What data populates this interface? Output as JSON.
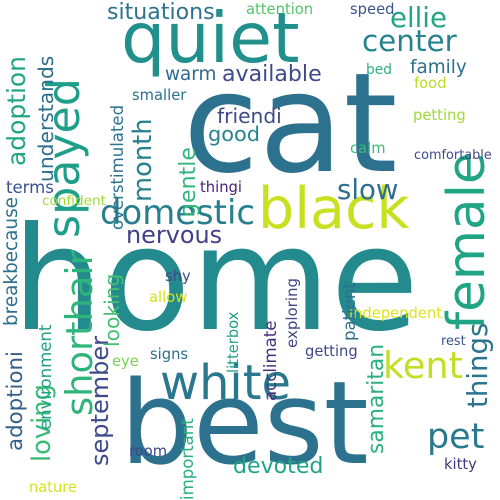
{
  "background": "#ffffff",
  "words": [
    {
      "text": "home",
      "color": "#238A8D"
    },
    {
      "text": "cat",
      "color": "#2C728E"
    },
    {
      "text": "best",
      "color": "#2C728E"
    },
    {
      "text": "quiet",
      "color": "#21908D"
    },
    {
      "text": "black",
      "color": "#C8E020"
    },
    {
      "text": "white",
      "color": "#2A788E"
    },
    {
      "text": "female",
      "color": "#20A486"
    },
    {
      "text": "spayed",
      "color": "#1F9E89"
    },
    {
      "text": "domestic",
      "color": "#277F8E"
    },
    {
      "text": "shorthair",
      "color": "#2FB47C"
    },
    {
      "text": "kent",
      "color": "#C2DF23"
    },
    {
      "text": "pet",
      "color": "#29798E"
    },
    {
      "text": "center",
      "color": "#25848E"
    },
    {
      "text": "ellie",
      "color": "#22A785"
    },
    {
      "text": "adoption",
      "color": "#21A585"
    },
    {
      "text": "month",
      "color": "#27808E"
    },
    {
      "text": "available",
      "color": "#3E4A89"
    },
    {
      "text": "slow",
      "color": "#2E6F8E"
    },
    {
      "text": "nervous",
      "color": "#424086"
    },
    {
      "text": "gentle",
      "color": "#31B57B"
    },
    {
      "text": "devoted",
      "color": "#20A486"
    },
    {
      "text": "samaritan",
      "color": "#2BB07F"
    },
    {
      "text": "september",
      "color": "#3E4A89"
    },
    {
      "text": "things",
      "color": "#2C738E"
    },
    {
      "text": "loving",
      "color": "#3ABA76"
    },
    {
      "text": "adoptioni",
      "color": "#35608D"
    },
    {
      "text": "good",
      "color": "#26828E"
    },
    {
      "text": "warm",
      "color": "#31688E"
    },
    {
      "text": "situations",
      "color": "#2C728E"
    },
    {
      "text": "family",
      "color": "#2E6E8E"
    },
    {
      "text": "friendi",
      "color": "#3E4A89"
    },
    {
      "text": "looking",
      "color": "#44BF70"
    },
    {
      "text": "understands",
      "color": "#2E6E8E"
    },
    {
      "text": "independent",
      "color": "#DFE318"
    },
    {
      "text": "overstimulated",
      "color": "#2C738E"
    },
    {
      "text": "getting",
      "color": "#3F4889"
    },
    {
      "text": "thingi",
      "color": "#482475"
    },
    {
      "text": "terms",
      "color": "#3B528B"
    },
    {
      "text": "smaller",
      "color": "#2C728E"
    },
    {
      "text": "food",
      "color": "#B8DE29"
    },
    {
      "text": "petting",
      "color": "#A0DA39"
    },
    {
      "text": "calm",
      "color": "#3CBC75"
    },
    {
      "text": "shy",
      "color": "#3E4989"
    },
    {
      "text": "allow",
      "color": "#D2E21B"
    },
    {
      "text": "signs",
      "color": "#2D708E"
    },
    {
      "text": "eye",
      "color": "#7AD151"
    },
    {
      "text": "room",
      "color": "#404688"
    },
    {
      "text": "kitty",
      "color": "#453882"
    },
    {
      "text": "nature",
      "color": "#D8E219"
    },
    {
      "text": "attention",
      "color": "#52C569"
    },
    {
      "text": "speed",
      "color": "#39568C"
    },
    {
      "text": "bed",
      "color": "#2BB07F"
    },
    {
      "text": "comfortable",
      "color": "#3E4A89"
    },
    {
      "text": "confident",
      "color": "#A0DA39"
    },
    {
      "text": "breakbecause",
      "color": "#2D708E"
    },
    {
      "text": "environment",
      "color": "#1F9E89"
    },
    {
      "text": "litterbox",
      "color": "#1F9E89"
    },
    {
      "text": "acclimate",
      "color": "#472D7B"
    },
    {
      "text": "exploring",
      "color": "#3F4788"
    },
    {
      "text": "patient",
      "color": "#2E6E8E"
    },
    {
      "text": "rest",
      "color": "#3B528B"
    },
    {
      "text": "important",
      "color": "#29AF7F"
    }
  ]
}
